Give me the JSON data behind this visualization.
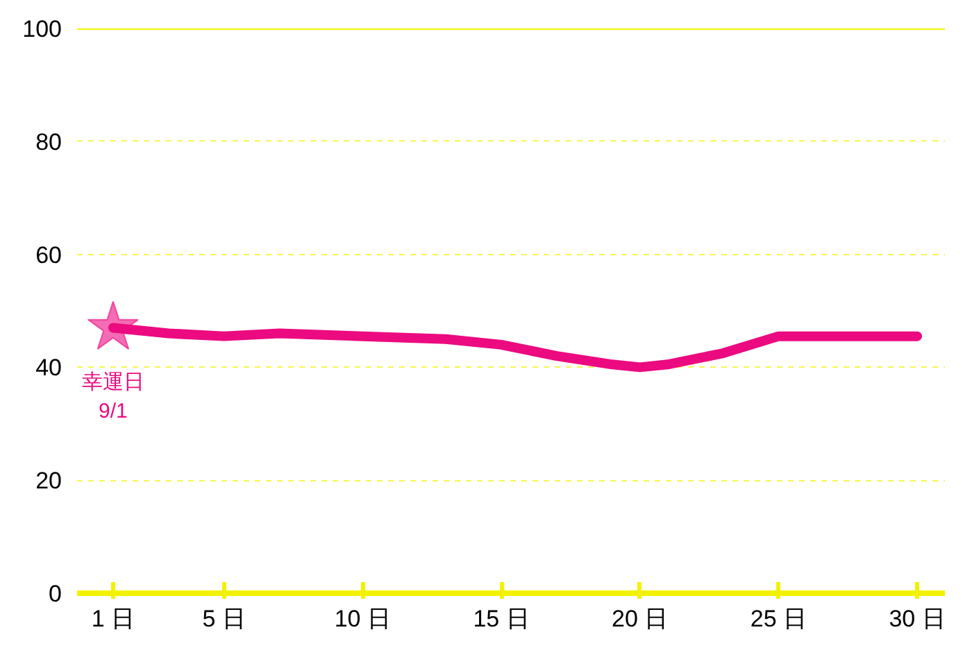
{
  "chart_data": {
    "type": "line",
    "x": [
      1,
      3,
      5,
      7,
      10,
      13,
      15,
      17,
      19,
      20,
      21,
      23,
      25,
      27,
      30
    ],
    "series": [
      {
        "color": "#ec0a80",
        "values": [
          47,
          46,
          45.5,
          46,
          45.5,
          45,
          44,
          42,
          40.5,
          40,
          40.5,
          42.5,
          45.5,
          45.5,
          45.5
        ]
      }
    ],
    "xlim": [
      -0.3,
      31
    ],
    "xticks": [
      {
        "value": 1,
        "label": "1 日"
      },
      {
        "value": 5,
        "label": "5 日"
      },
      {
        "value": 10,
        "label": "10 日"
      },
      {
        "value": 15,
        "label": "15 日"
      },
      {
        "value": 20,
        "label": "20 日"
      },
      {
        "value": 25,
        "label": "25 日"
      },
      {
        "value": 30,
        "label": "30 日"
      }
    ],
    "ylim": [
      0,
      100
    ],
    "yticks": [
      0,
      20,
      40,
      60,
      80,
      100
    ],
    "grid": "y",
    "marker": "none",
    "line_style": "solid",
    "annotations": [
      {
        "text": "幸運日\n9/1",
        "x": 1,
        "y": 47
      }
    ]
  }
}
